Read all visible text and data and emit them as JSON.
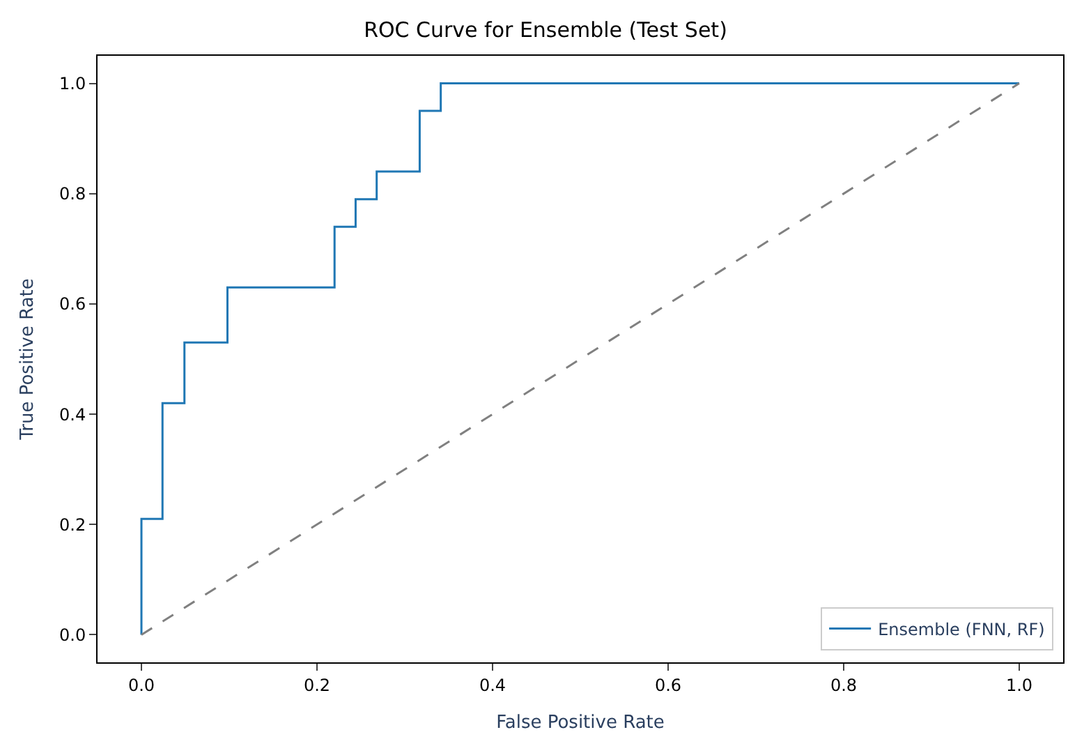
{
  "chart_data": {
    "type": "line",
    "title": "ROC Curve for Ensemble (Test Set)",
    "xlabel": "False Positive Rate",
    "ylabel": "True Positive Rate",
    "series": [
      {
        "name": "Ensemble (FNN, RF)",
        "type": "step",
        "color": "#1f77b4",
        "x": [
          0,
          0,
          0.024,
          0.049,
          0.098,
          0.22,
          0.244,
          0.268,
          0.317,
          0.341,
          1.0
        ],
        "values": [
          0,
          0.21,
          0.42,
          0.53,
          0.63,
          0.74,
          0.79,
          0.84,
          0.95,
          1.0,
          1.0
        ]
      },
      {
        "color": "#808080",
        "line_style": "dashed",
        "x": [
          0,
          1
        ],
        "values": [
          0,
          1
        ]
      }
    ],
    "xlim": [
      -0.05,
      1.05
    ],
    "ylim": [
      -0.05,
      1.05
    ],
    "xticks": [
      {
        "value": 0,
        "label": "0.0"
      },
      0.2,
      0.4,
      0.6,
      0.8,
      {
        "value": 1,
        "label": "1.0"
      }
    ],
    "yticks": [
      {
        "value": 0,
        "label": "0.0"
      },
      0.2,
      0.4,
      0.6,
      0.8,
      {
        "value": 1,
        "label": "1.0"
      }
    ],
    "legend": "bottom right",
    "marker": "none"
  }
}
